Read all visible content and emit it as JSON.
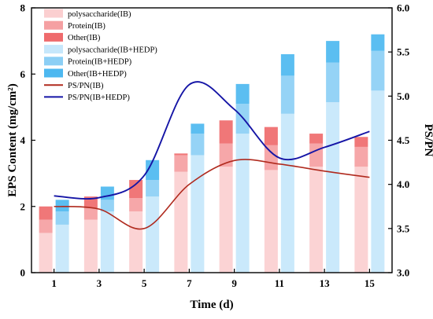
{
  "chart_data": {
    "type": "bar",
    "title": "",
    "xlabel": "Time (d)",
    "ylabel": "EPS Content (mg/cm²)",
    "y2label": "PS/PN",
    "categories": [
      "1",
      "3",
      "5",
      "7",
      "9",
      "11",
      "13",
      "15"
    ],
    "ylim": [
      0,
      8
    ],
    "y2lim": [
      3.0,
      6.0
    ],
    "yticks": [
      "0",
      "2",
      "4",
      "6",
      "8"
    ],
    "y2ticks": [
      "3.0",
      "3.5",
      "4.0",
      "4.5",
      "5.0",
      "5.5",
      "6.0"
    ],
    "legend_position": "top-left",
    "stacked_groups": [
      {
        "group": "IB",
        "series": [
          {
            "name": "polysaccharide(IB)",
            "color": "#fbcfd0",
            "values": [
              1.2,
              1.6,
              1.85,
              3.05,
              3.2,
              3.1,
              3.2,
              3.2
            ]
          },
          {
            "name": "Protein(IB)",
            "color": "#f5a0a2",
            "values": [
              0.4,
              0.35,
              0.4,
              0.5,
              0.7,
              0.75,
              0.7,
              0.6
            ]
          },
          {
            "name": "Other(IB)",
            "color": "#ef6b6d",
            "values": [
              0.4,
              0.35,
              0.55,
              0.05,
              0.7,
              0.55,
              0.3,
              0.3
            ]
          }
        ]
      },
      {
        "group": "IB+HEDP",
        "series": [
          {
            "name": "polysaccharide(IB+HEDP)",
            "color": "#c6e7fb",
            "values": [
              1.45,
              1.85,
              2.3,
              3.55,
              4.2,
              4.8,
              5.15,
              5.5
            ]
          },
          {
            "name": "Protein(IB+HEDP)",
            "color": "#8ccff5",
            "values": [
              0.4,
              0.35,
              0.5,
              0.65,
              0.9,
              1.15,
              1.2,
              1.2
            ]
          },
          {
            "name": "Other(IB+HEDP)",
            "color": "#4db8f0",
            "values": [
              0.35,
              0.4,
              0.6,
              0.3,
              0.6,
              0.65,
              0.65,
              0.5
            ]
          }
        ]
      }
    ],
    "lines": [
      {
        "name": "PS/PN(IB)",
        "color": "#b02a1e",
        "axis": "right",
        "values": [
          3.75,
          3.72,
          3.5,
          4.0,
          4.27,
          4.23,
          4.15,
          4.08
        ]
      },
      {
        "name": "PS/PN(IB+HEDP)",
        "color": "#1515a6",
        "axis": "right",
        "values": [
          3.87,
          3.85,
          4.1,
          5.13,
          4.85,
          4.3,
          4.42,
          4.6
        ]
      }
    ]
  }
}
